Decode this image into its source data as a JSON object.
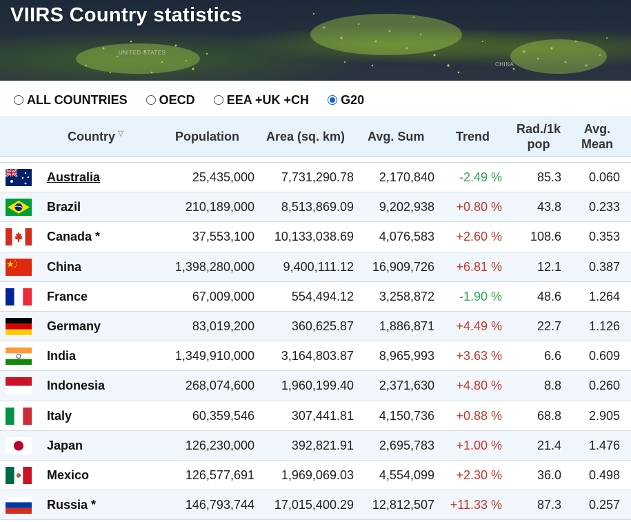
{
  "header": {
    "title": "VIIRS Country statistics",
    "map_labels": [
      "UNITED STATES",
      "CHINA"
    ]
  },
  "filters": [
    {
      "label": "ALL COUNTRIES",
      "checked": false
    },
    {
      "label": "OECD",
      "checked": false
    },
    {
      "label": "EEA +UK +CH",
      "checked": false
    },
    {
      "label": "G20",
      "checked": true
    }
  ],
  "table": {
    "columns": {
      "country": "Country",
      "population": "Population",
      "area": "Area (sq. km)",
      "avg_sum": "Avg. Sum",
      "trend": "Trend",
      "rad_line1": "Rad./1k",
      "rad_line2": "pop",
      "mean_line1": "Avg.",
      "mean_line2": "Mean"
    },
    "sort_icon": "filter-funnel-icon",
    "rows": [
      {
        "flag": "australia-flag",
        "country": "Australia",
        "population": "25,435,000",
        "area": "7,731,290.78",
        "avg_sum": "2,170,840",
        "trend": "-2.49 %",
        "rad": "85.3",
        "mean": "0.060"
      },
      {
        "flag": "brazil-flag",
        "country": "Brazil",
        "population": "210,189,000",
        "area": "8,513,869.09",
        "avg_sum": "9,202,938",
        "trend": "+0.80 %",
        "rad": "43.8",
        "mean": "0.233"
      },
      {
        "flag": "canada-flag",
        "country": "Canada *",
        "population": "37,553,100",
        "area": "10,133,038.69",
        "avg_sum": "4,076,583",
        "trend": "+2.60 %",
        "rad": "108.6",
        "mean": "0.353"
      },
      {
        "flag": "china-flag",
        "country": "China",
        "population": "1,398,280,000",
        "area": "9,400,111.12",
        "avg_sum": "16,909,726",
        "trend": "+6.81 %",
        "rad": "12.1",
        "mean": "0.387"
      },
      {
        "flag": "france-flag",
        "country": "France",
        "population": "67,009,000",
        "area": "554,494.12",
        "avg_sum": "3,258,872",
        "trend": "-1.90 %",
        "rad": "48.6",
        "mean": "1.264"
      },
      {
        "flag": "germany-flag",
        "country": "Germany",
        "population": "83,019,200",
        "area": "360,625.87",
        "avg_sum": "1,886,871",
        "trend": "+4.49 %",
        "rad": "22.7",
        "mean": "1.126"
      },
      {
        "flag": "india-flag",
        "country": "India",
        "population": "1,349,910,000",
        "area": "3,164,803.87",
        "avg_sum": "8,965,993",
        "trend": "+3.63 %",
        "rad": "6.6",
        "mean": "0.609"
      },
      {
        "flag": "indonesia-flag",
        "country": "Indonesia",
        "population": "268,074,600",
        "area": "1,960,199.40",
        "avg_sum": "2,371,630",
        "trend": "+4.80 %",
        "rad": "8.8",
        "mean": "0.260"
      },
      {
        "flag": "italy-flag",
        "country": "Italy",
        "population": "60,359,546",
        "area": "307,441.81",
        "avg_sum": "4,150,736",
        "trend": "+0.88 %",
        "rad": "68.8",
        "mean": "2.905"
      },
      {
        "flag": "japan-flag",
        "country": "Japan",
        "population": "126,230,000",
        "area": "392,821.91",
        "avg_sum": "2,695,783",
        "trend": "+1.00 %",
        "rad": "21.4",
        "mean": "1.476"
      },
      {
        "flag": "mexico-flag",
        "country": "Mexico",
        "population": "126,577,691",
        "area": "1,969,069.03",
        "avg_sum": "4,554,099",
        "trend": "+2.30 %",
        "rad": "36.0",
        "mean": "0.498"
      },
      {
        "flag": "russia-flag",
        "country": "Russia *",
        "population": "146,793,744",
        "area": "17,015,400.29",
        "avg_sum": "12,812,507",
        "trend": "+11.33 %",
        "rad": "87.3",
        "mean": "0.257"
      }
    ]
  },
  "colors": {
    "trend_up": "#c0392b",
    "trend_down": "#2fa84f",
    "header_bg": "#e8f2fa",
    "radio_accent": "#0a66d6"
  }
}
